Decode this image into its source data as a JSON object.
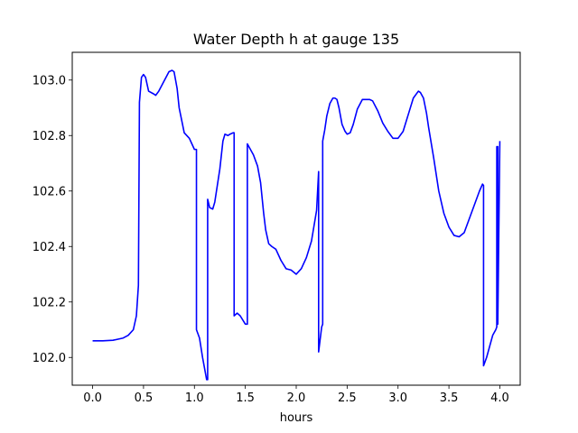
{
  "chart_data": {
    "type": "line",
    "title": "Water Depth h at gauge 135",
    "xlabel": "hours",
    "ylabel": "",
    "xlim": [
      -0.2,
      4.2
    ],
    "ylim": [
      101.9,
      103.1
    ],
    "xticks": [
      0.0,
      0.5,
      1.0,
      1.5,
      2.0,
      2.5,
      3.0,
      3.5,
      4.0
    ],
    "xtick_labels": [
      "0.0",
      "0.5",
      "1.0",
      "1.5",
      "2.0",
      "2.5",
      "3.0",
      "3.5",
      "4.0"
    ],
    "yticks": [
      102.0,
      102.2,
      102.4,
      102.6,
      102.8,
      103.0
    ],
    "ytick_labels": [
      "102.0",
      "102.2",
      "102.4",
      "102.6",
      "102.8",
      "103.0"
    ],
    "grid": false,
    "series": [
      {
        "color": "#0000ff",
        "x": [
          0.0,
          0.1,
          0.2,
          0.3,
          0.35,
          0.4,
          0.43,
          0.45,
          0.46,
          0.46,
          0.48,
          0.5,
          0.52,
          0.55,
          0.6,
          0.62,
          0.65,
          0.7,
          0.75,
          0.78,
          0.8,
          0.83,
          0.85,
          0.9,
          0.95,
          1.0,
          1.02,
          1.02,
          1.05,
          1.08,
          1.1,
          1.12,
          1.13,
          1.13,
          1.15,
          1.18,
          1.2,
          1.25,
          1.28,
          1.3,
          1.33,
          1.35,
          1.38,
          1.39,
          1.39,
          1.42,
          1.45,
          1.5,
          1.52,
          1.52,
          1.55,
          1.58,
          1.6,
          1.62,
          1.65,
          1.68,
          1.7,
          1.73,
          1.76,
          1.8,
          1.85,
          1.9,
          1.95,
          2.0,
          2.05,
          2.1,
          2.15,
          2.2,
          2.22,
          2.22,
          2.25,
          2.26,
          2.26,
          2.28,
          2.3,
          2.33,
          2.36,
          2.38,
          2.4,
          2.42,
          2.45,
          2.48,
          2.5,
          2.53,
          2.56,
          2.6,
          2.65,
          2.7,
          2.72,
          2.75,
          2.8,
          2.85,
          2.9,
          2.95,
          3.0,
          3.05,
          3.1,
          3.15,
          3.2,
          3.22,
          3.25,
          3.28,
          3.3,
          3.35,
          3.4,
          3.45,
          3.5,
          3.55,
          3.6,
          3.65,
          3.7,
          3.75,
          3.8,
          3.83,
          3.84,
          3.84,
          3.87,
          3.9,
          3.93,
          3.96,
          3.97,
          3.97,
          3.98,
          3.98,
          4.0
        ],
        "y": [
          102.06,
          102.06,
          102.062,
          102.07,
          102.08,
          102.1,
          102.15,
          102.26,
          102.92,
          102.92,
          103.01,
          103.02,
          103.01,
          102.96,
          102.95,
          102.945,
          102.96,
          102.995,
          103.03,
          103.035,
          103.03,
          102.97,
          102.9,
          102.81,
          102.79,
          102.75,
          102.75,
          102.1,
          102.07,
          102.0,
          101.96,
          101.92,
          101.92,
          102.57,
          102.54,
          102.535,
          102.56,
          102.68,
          102.78,
          102.805,
          102.8,
          102.805,
          102.81,
          102.81,
          102.15,
          102.16,
          102.15,
          102.12,
          102.12,
          102.77,
          102.75,
          102.73,
          102.71,
          102.69,
          102.63,
          102.52,
          102.46,
          102.41,
          102.4,
          102.39,
          102.35,
          102.32,
          102.315,
          102.3,
          102.32,
          102.36,
          102.42,
          102.53,
          102.67,
          102.02,
          102.11,
          102.12,
          102.78,
          102.82,
          102.87,
          102.915,
          102.935,
          102.935,
          102.93,
          102.9,
          102.84,
          102.815,
          102.805,
          102.81,
          102.84,
          102.895,
          102.93,
          102.93,
          102.93,
          102.925,
          102.89,
          102.845,
          102.815,
          102.79,
          102.79,
          102.815,
          102.875,
          102.935,
          102.96,
          102.955,
          102.935,
          102.88,
          102.83,
          102.72,
          102.6,
          102.52,
          102.47,
          102.44,
          102.435,
          102.45,
          102.5,
          102.55,
          102.6,
          102.625,
          102.62,
          101.97,
          102.0,
          102.04,
          102.08,
          102.1,
          102.11,
          102.76,
          102.76,
          102.12,
          102.78
        ]
      }
    ]
  }
}
